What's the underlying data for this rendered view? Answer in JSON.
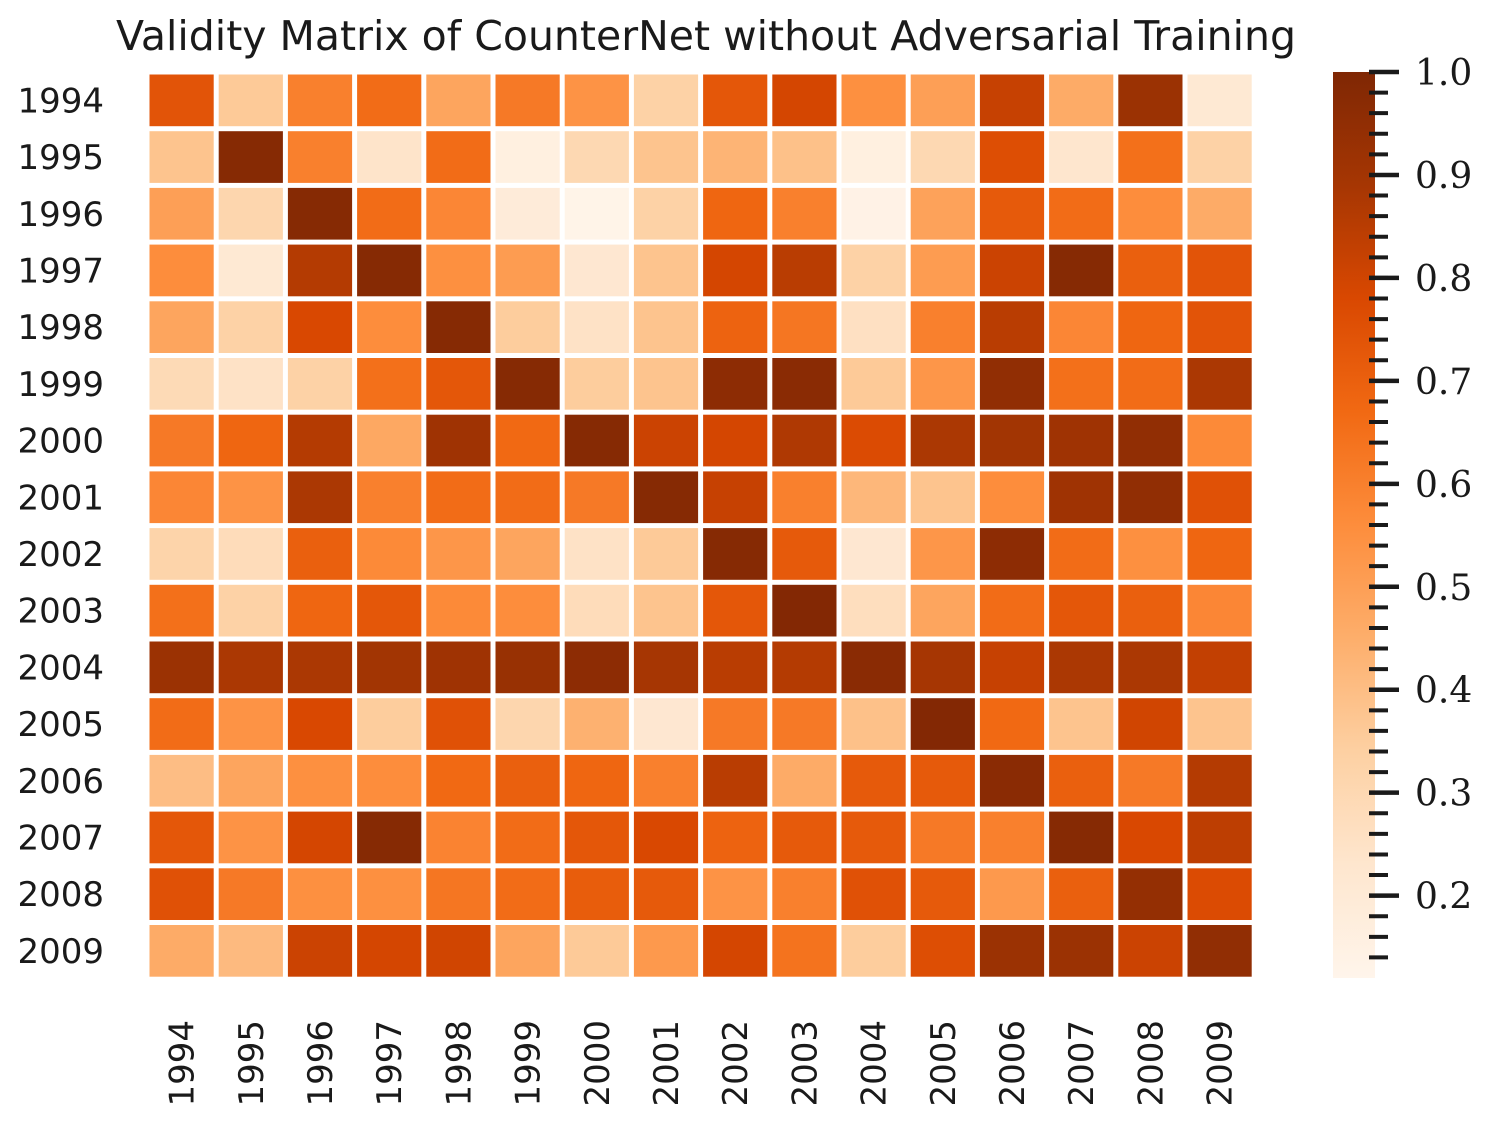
{
  "chart_data": {
    "type": "heatmap",
    "title": "Validity Matrix of CounterNet without Adversarial Training",
    "xlabel": "",
    "ylabel": "",
    "x_categories": [
      "1994",
      "1995",
      "1996",
      "1997",
      "1998",
      "1999",
      "2000",
      "2001",
      "2002",
      "2003",
      "2004",
      "2005",
      "2006",
      "2007",
      "2008",
      "2009"
    ],
    "y_categories": [
      "1994",
      "1995",
      "1996",
      "1997",
      "1998",
      "1999",
      "2000",
      "2001",
      "2002",
      "2003",
      "2004",
      "2005",
      "2006",
      "2007",
      "2008",
      "2009"
    ],
    "values": [
      [
        0.74,
        0.36,
        0.6,
        0.66,
        0.48,
        0.62,
        0.54,
        0.33,
        0.73,
        0.79,
        0.55,
        0.5,
        0.82,
        0.46,
        0.92,
        0.21
      ],
      [
        0.38,
        0.98,
        0.6,
        0.24,
        0.66,
        0.16,
        0.3,
        0.38,
        0.43,
        0.39,
        0.16,
        0.3,
        0.76,
        0.23,
        0.65,
        0.33
      ],
      [
        0.5,
        0.31,
        0.98,
        0.66,
        0.58,
        0.19,
        0.13,
        0.33,
        0.68,
        0.6,
        0.14,
        0.49,
        0.72,
        0.66,
        0.56,
        0.46
      ],
      [
        0.56,
        0.21,
        0.86,
        0.98,
        0.55,
        0.51,
        0.22,
        0.38,
        0.79,
        0.85,
        0.33,
        0.51,
        0.81,
        0.98,
        0.7,
        0.74
      ],
      [
        0.48,
        0.33,
        0.78,
        0.56,
        0.98,
        0.35,
        0.25,
        0.38,
        0.69,
        0.63,
        0.26,
        0.6,
        0.85,
        0.58,
        0.68,
        0.74
      ],
      [
        0.29,
        0.25,
        0.33,
        0.65,
        0.73,
        0.98,
        0.35,
        0.38,
        0.96,
        0.97,
        0.36,
        0.53,
        0.95,
        0.65,
        0.66,
        0.88
      ],
      [
        0.62,
        0.68,
        0.86,
        0.47,
        0.91,
        0.67,
        0.98,
        0.81,
        0.79,
        0.87,
        0.77,
        0.88,
        0.9,
        0.91,
        0.95,
        0.57
      ],
      [
        0.58,
        0.54,
        0.88,
        0.6,
        0.66,
        0.66,
        0.62,
        0.98,
        0.82,
        0.6,
        0.42,
        0.38,
        0.56,
        0.91,
        0.95,
        0.75
      ],
      [
        0.32,
        0.28,
        0.7,
        0.57,
        0.53,
        0.48,
        0.25,
        0.36,
        0.98,
        0.72,
        0.22,
        0.53,
        0.96,
        0.66,
        0.55,
        0.68
      ],
      [
        0.65,
        0.33,
        0.68,
        0.73,
        0.57,
        0.56,
        0.28,
        0.38,
        0.73,
        0.99,
        0.27,
        0.48,
        0.66,
        0.73,
        0.7,
        0.58
      ],
      [
        0.92,
        0.88,
        0.88,
        0.9,
        0.91,
        0.93,
        0.96,
        0.89,
        0.85,
        0.86,
        0.97,
        0.89,
        0.82,
        0.88,
        0.88,
        0.83
      ],
      [
        0.66,
        0.54,
        0.78,
        0.35,
        0.75,
        0.31,
        0.44,
        0.22,
        0.62,
        0.62,
        0.39,
        0.99,
        0.67,
        0.38,
        0.8,
        0.38
      ],
      [
        0.4,
        0.48,
        0.55,
        0.56,
        0.67,
        0.7,
        0.68,
        0.6,
        0.85,
        0.46,
        0.72,
        0.72,
        0.97,
        0.7,
        0.62,
        0.86
      ],
      [
        0.73,
        0.54,
        0.79,
        0.98,
        0.59,
        0.66,
        0.73,
        0.78,
        0.69,
        0.72,
        0.72,
        0.62,
        0.6,
        0.98,
        0.78,
        0.84
      ],
      [
        0.75,
        0.62,
        0.55,
        0.55,
        0.63,
        0.66,
        0.71,
        0.72,
        0.54,
        0.6,
        0.75,
        0.72,
        0.52,
        0.7,
        0.94,
        0.77
      ],
      [
        0.46,
        0.41,
        0.81,
        0.79,
        0.8,
        0.48,
        0.36,
        0.52,
        0.79,
        0.64,
        0.35,
        0.76,
        0.92,
        0.92,
        0.81,
        0.95
      ]
    ],
    "colorbar": {
      "vmin": 0.12,
      "vmax": 1.0,
      "ticks": [
        0.2,
        0.3,
        0.4,
        0.5,
        0.6,
        0.7,
        0.8,
        0.9,
        1.0
      ],
      "tick_labels": [
        "0.2",
        "0.3",
        "0.4",
        "0.5",
        "0.6",
        "0.7",
        "0.8",
        "0.9",
        "1.0"
      ],
      "minor_step": 0.02,
      "colormap": "Oranges",
      "colormap_stops": [
        "#fff5eb",
        "#fee6ce",
        "#fdd0a2",
        "#fdae6b",
        "#fd8d3c",
        "#f16913",
        "#d94801",
        "#a63603",
        "#7f2704"
      ]
    },
    "grid": false,
    "cell_separator_color": "#ffffff",
    "legend": "colorbar-right"
  }
}
